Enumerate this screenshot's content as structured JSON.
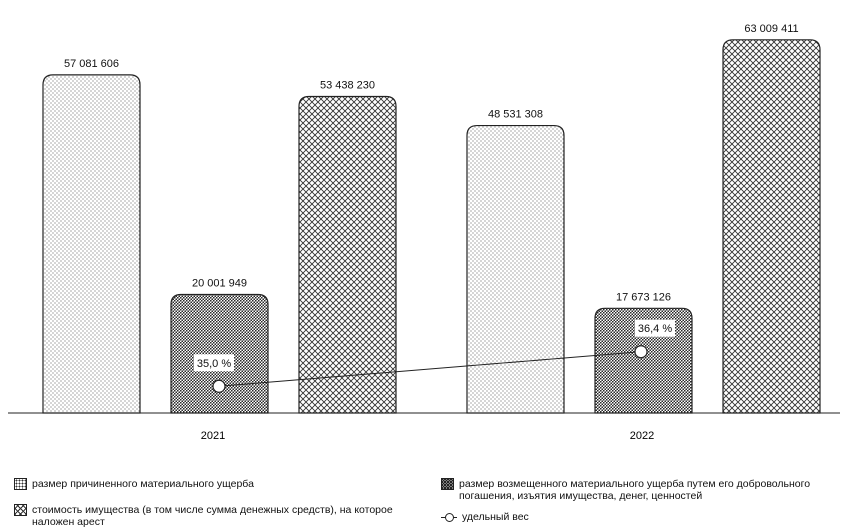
{
  "chart_data": {
    "type": "bar",
    "categories": [
      "2021",
      "2022"
    ],
    "series": [
      {
        "name": "размер причиненного материального ущерба",
        "values": [
          57081606,
          48531308
        ],
        "labels": [
          "57 081 606",
          "48 531 308"
        ],
        "pattern": "dots"
      },
      {
        "name": "размер возмещенного материального ущерба путем его добровольного погашения, изъятия имущества, денег, ценностей",
        "values": [
          20001949,
          17673126
        ],
        "labels": [
          "20 001 949",
          "17 673 126"
        ],
        "pattern": "dense-dots"
      },
      {
        "name": "стоимость имущества (в том числе сумма денежных средств), на которое наложен арест",
        "values": [
          53438230,
          63009411
        ],
        "labels": [
          "53 438 230",
          "63 009 411"
        ],
        "pattern": "lattice"
      }
    ],
    "line_series": {
      "name": "удельный вес",
      "values": [
        35.0,
        36.4
      ],
      "labels": [
        "35,0 %",
        "36,4 %"
      ]
    },
    "ylim": [
      0,
      65000000
    ],
    "grid": false,
    "legend_position": "bottom"
  },
  "colors": {
    "ink": "#222222",
    "background": "#ffffff"
  }
}
